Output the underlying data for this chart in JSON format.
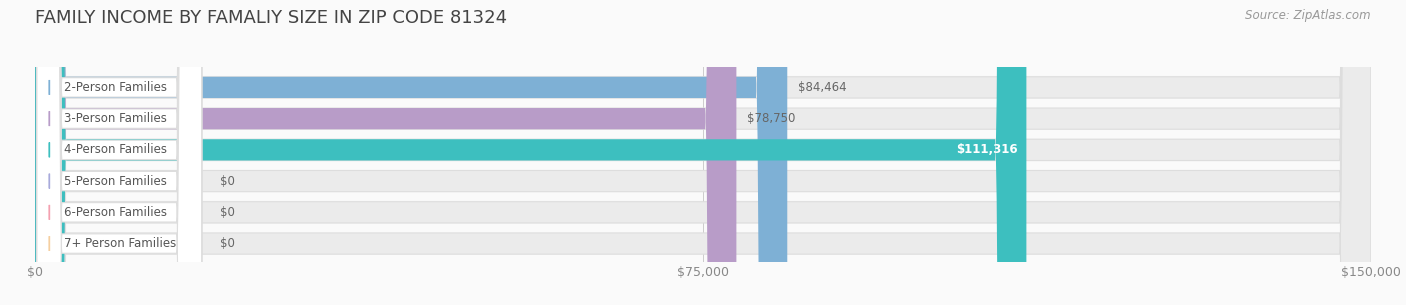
{
  "title": "FAMILY INCOME BY FAMALIY SIZE IN ZIP CODE 81324",
  "source": "Source: ZipAtlas.com",
  "categories": [
    "2-Person Families",
    "3-Person Families",
    "4-Person Families",
    "5-Person Families",
    "6-Person Families",
    "7+ Person Families"
  ],
  "values": [
    84464,
    78750,
    111316,
    0,
    0,
    0
  ],
  "bar_colors": [
    "#7EB0D5",
    "#B89CC8",
    "#3DBFBF",
    "#A8AADB",
    "#F4A0B0",
    "#F5CFA0"
  ],
  "bar_bg_color": "#EBEBEB",
  "xlim": [
    0,
    150000
  ],
  "xticks": [
    0,
    75000,
    150000
  ],
  "xtick_labels": [
    "$0",
    "$75,000",
    "$150,000"
  ],
  "value_labels": [
    "$84,464",
    "$78,750",
    "$111,316",
    "$0",
    "$0",
    "$0"
  ],
  "value_label_inside": [
    false,
    false,
    true,
    false,
    false,
    false
  ],
  "background_color": "#FAFAFA",
  "row_bg_colors": [
    "#F5F5F5",
    "#FAFAFA"
  ],
  "bar_height": 0.68,
  "title_fontsize": 13,
  "label_fontsize": 8.5,
  "tick_fontsize": 9,
  "source_fontsize": 8.5
}
